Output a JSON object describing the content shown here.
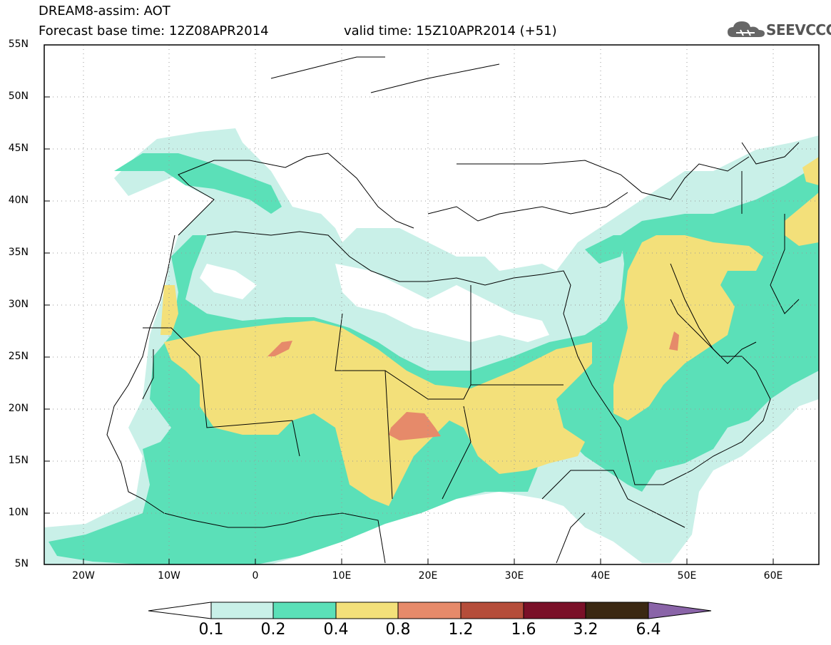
{
  "header": {
    "line1": "DREAM8-assim: AOT",
    "line2": "Forecast base time: 12Z08APR2014",
    "line3": "valid time: 15Z10APR2014 (+51)"
  },
  "logo": {
    "text": "SEEVCCC",
    "icon": "cloud-icon"
  },
  "map": {
    "lat_labels": [
      "55N",
      "50N",
      "45N",
      "40N",
      "35N",
      "30N",
      "25N",
      "20N",
      "15N",
      "10N",
      "5N"
    ],
    "lon_labels": [
      "20W",
      "10W",
      "0",
      "10E",
      "20E",
      "30E",
      "40E",
      "50E",
      "60E"
    ]
  },
  "colorbar": {
    "labels": [
      "0.1",
      "0.2",
      "0.4",
      "0.8",
      "1.2",
      "1.6",
      "3.2",
      "6.4"
    ],
    "colors": [
      "#ffffff",
      "#c9f0e8",
      "#5be0b8",
      "#f3e07a",
      "#e68a6a",
      "#b54d3a",
      "#7a1028",
      "#3b2812",
      "#8a64a8"
    ]
  }
}
